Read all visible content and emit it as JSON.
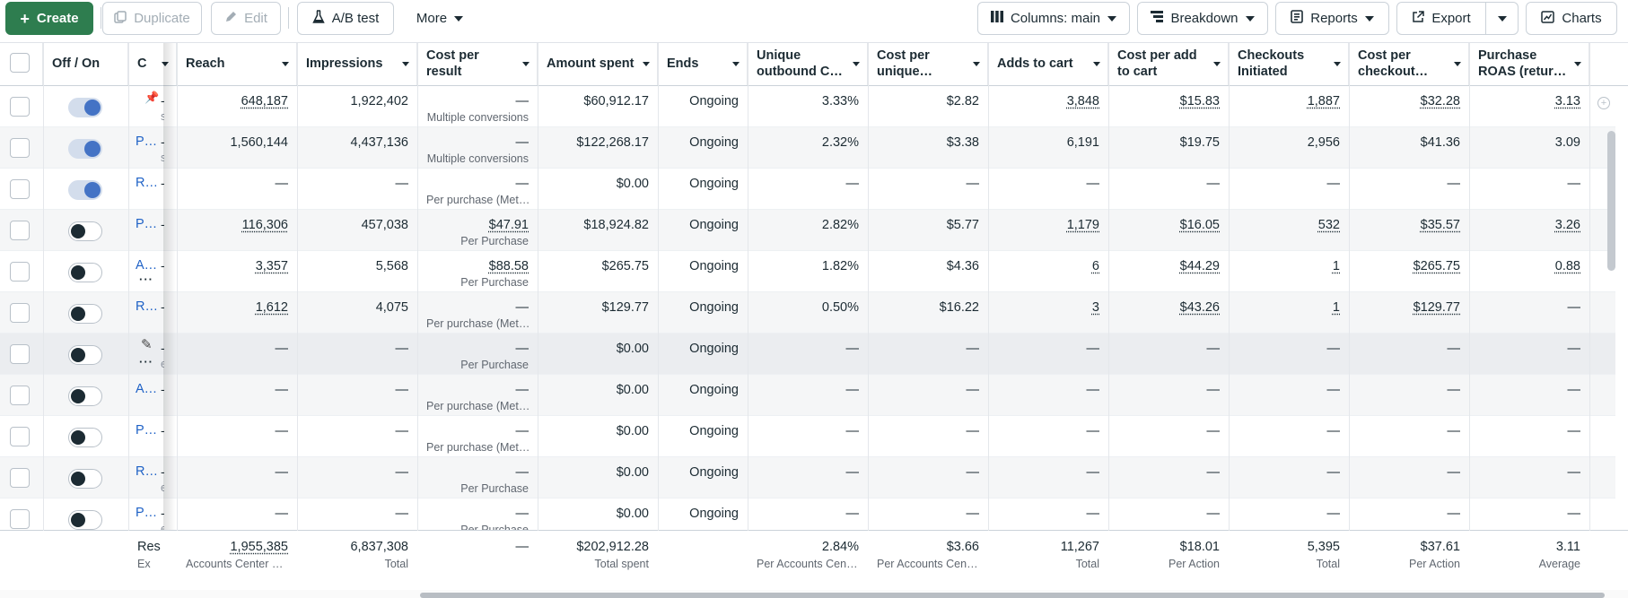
{
  "toolbar": {
    "create": "Create",
    "duplicate": "Duplicate",
    "edit": "Edit",
    "ab_test": "A/B test",
    "more": "More",
    "columns": "Columns: main",
    "breakdown": "Breakdown",
    "reports": "Reports",
    "export": "Export",
    "charts": "Charts"
  },
  "headers": {
    "off_on": "Off / On",
    "name": "C",
    "reach": "Reach",
    "impressions": "Impressions",
    "cost_per_result": "Cost per result",
    "amount_spent": "Amount spent",
    "ends": "Ends",
    "unique_outbound": "Unique outbound C…",
    "cost_per_unique": "Cost per unique…",
    "adds_to_cart": "Adds to cart",
    "cost_per_add": "Cost per add to cart",
    "checkouts": "Checkouts Initiated",
    "cost_per_checkout": "Cost per checkout…",
    "purchase_roas": "Purchase ROAS (retur…"
  },
  "rows": [
    {
      "toggle": "on",
      "name": "",
      "frag": "s",
      "reach": "648,187",
      "impressions": "1,922,402",
      "cpr": "—",
      "cpr_sub": "Multiple conversions",
      "spent": "$60,912.17",
      "ends": "Ongoing",
      "unique": "3.33%",
      "cpu": "$2.82",
      "adds": "3,848",
      "cpa": "$15.83",
      "checkouts": "1,887",
      "cpc": "$32.28",
      "roas": "3.13"
    },
    {
      "toggle": "on",
      "name": "P…",
      "frag": "s",
      "reach": "1,560,144",
      "impressions": "4,437,136",
      "cpr": "—",
      "cpr_sub": "Multiple conversions",
      "spent": "$122,268.17",
      "ends": "Ongoing",
      "unique": "2.32%",
      "cpu": "$3.38",
      "adds": "6,191",
      "cpa": "$19.75",
      "checkouts": "2,956",
      "cpc": "$41.36",
      "roas": "3.09"
    },
    {
      "toggle": "on",
      "name": "R…",
      "frag": "",
      "reach": "—",
      "impressions": "—",
      "cpr": "—",
      "cpr_sub": "Per purchase (Met…",
      "spent": "$0.00",
      "ends": "Ongoing",
      "unique": "—",
      "cpu": "—",
      "adds": "—",
      "cpa": "—",
      "checkouts": "—",
      "cpc": "—",
      "roas": "—"
    },
    {
      "toggle": "off",
      "name": "P…",
      "frag": "",
      "reach": "116,306",
      "impressions": "457,038",
      "cpr": "$47.91",
      "cpr_sub": "Per Purchase",
      "spent": "$18,924.82",
      "ends": "Ongoing",
      "unique": "2.82%",
      "cpu": "$5.77",
      "adds": "1,179",
      "cpa": "$16.05",
      "checkouts": "532",
      "cpc": "$35.57",
      "roas": "3.26"
    },
    {
      "toggle": "off",
      "name": "A…",
      "frag": "",
      "reach": "3,357",
      "impressions": "5,568",
      "cpr": "$88.58",
      "cpr_sub": "Per Purchase",
      "spent": "$265.75",
      "ends": "Ongoing",
      "unique": "1.82%",
      "cpu": "$4.36",
      "adds": "6",
      "cpa": "$44.29",
      "checkouts": "1",
      "cpc": "$265.75",
      "roas": "0.88"
    },
    {
      "toggle": "off",
      "name": "R…",
      "frag": "",
      "reach": "1,612",
      "impressions": "4,075",
      "cpr": "—",
      "cpr_sub": "Per purchase (Met…",
      "spent": "$129.77",
      "ends": "Ongoing",
      "unique": "0.50%",
      "cpu": "$16.22",
      "adds": "3",
      "cpa": "$43.26",
      "checkouts": "1",
      "cpc": "$129.77",
      "roas": "—"
    },
    {
      "toggle": "off",
      "name": "",
      "frag": "e",
      "reach": "—",
      "impressions": "—",
      "cpr": "—",
      "cpr_sub": "Per Purchase",
      "spent": "$0.00",
      "ends": "Ongoing",
      "unique": "—",
      "cpu": "—",
      "adds": "—",
      "cpa": "—",
      "checkouts": "—",
      "cpc": "—",
      "roas": "—"
    },
    {
      "toggle": "off",
      "name": "A…",
      "frag": "",
      "reach": "—",
      "impressions": "—",
      "cpr": "—",
      "cpr_sub": "Per purchase (Met…",
      "spent": "$0.00",
      "ends": "Ongoing",
      "unique": "—",
      "cpu": "—",
      "adds": "—",
      "cpa": "—",
      "checkouts": "—",
      "cpc": "—",
      "roas": "—"
    },
    {
      "toggle": "off",
      "name": "P…",
      "frag": "",
      "reach": "—",
      "impressions": "—",
      "cpr": "—",
      "cpr_sub": "Per purchase (Met…",
      "spent": "$0.00",
      "ends": "Ongoing",
      "unique": "—",
      "cpu": "—",
      "adds": "—",
      "cpa": "—",
      "checkouts": "—",
      "cpc": "—",
      "roas": "—"
    },
    {
      "toggle": "off",
      "name": "R…",
      "frag": "e",
      "reach": "—",
      "impressions": "—",
      "cpr": "—",
      "cpr_sub": "Per Purchase",
      "spent": "$0.00",
      "ends": "Ongoing",
      "unique": "—",
      "cpu": "—",
      "adds": "—",
      "cpa": "—",
      "checkouts": "—",
      "cpc": "—",
      "roas": "—"
    },
    {
      "toggle": "off",
      "name": "P…",
      "frag": "e",
      "reach": "—",
      "impressions": "—",
      "cpr": "—",
      "cpr_sub": "Per Purchase",
      "spent": "$0.00",
      "ends": "Ongoing",
      "unique": "—",
      "cpu": "—",
      "adds": "—",
      "cpa": "—",
      "checkouts": "—",
      "cpc": "—",
      "roas": "—"
    }
  ],
  "totals": {
    "name": "Res",
    "name_sub": "Ex",
    "reach": "1,955,385",
    "reach_sub": "Accounts Center a…",
    "impressions": "6,837,308",
    "impressions_sub": "Total",
    "cpr": "—",
    "spent": "$202,912.28",
    "spent_sub": "Total spent",
    "unique": "2.84%",
    "unique_sub": "Per Accounts Cent…",
    "cpu": "$3.66",
    "cpu_sub": "Per Accounts Cent…",
    "adds": "11,267",
    "adds_sub": "Total",
    "cpa": "$18.01",
    "cpa_sub": "Per Action",
    "checkouts": "5,395",
    "checkouts_sub": "Total",
    "cpc": "$37.61",
    "cpc_sub": "Per Action",
    "roas": "3.11",
    "roas_sub": "Average"
  },
  "icons": {
    "plus": "plus-icon",
    "duplicate": "duplicate-icon",
    "pencil": "pencil-icon",
    "flask": "flask-icon",
    "columns": "columns-icon",
    "breakdown": "breakdown-icon",
    "reports": "reports-icon",
    "export": "export-icon",
    "charts": "charts-icon",
    "pin": "pin-icon"
  }
}
